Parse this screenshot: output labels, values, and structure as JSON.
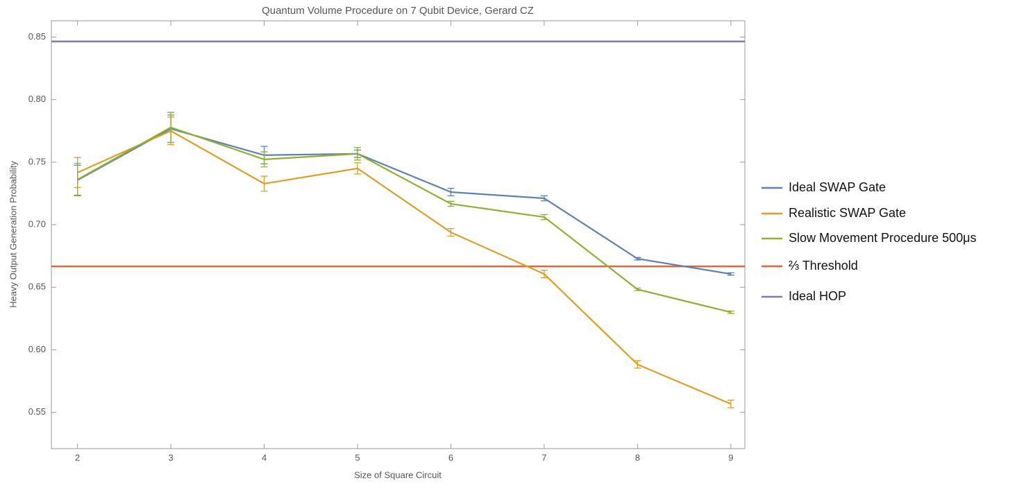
{
  "chart_data": {
    "type": "line",
    "title": "Quantum Volume Procedure on 7 Qubit Device, Gerard CZ",
    "x_label": "Size of Square Circuit",
    "y_label": "Heavy Output Generation Probability",
    "x": [
      2,
      3,
      4,
      5,
      6,
      7,
      8,
      9
    ],
    "series": [
      {
        "name": "Ideal SWAP Gate",
        "color": "#5e81b5",
        "values": [
          0.7356,
          0.7767,
          0.7556,
          0.7567,
          0.7261,
          0.7211,
          0.6728,
          0.6606
        ],
        "errors": [
          0.012,
          0.011,
          0.007,
          0.003,
          0.003,
          0.002,
          0.001,
          0.001
        ]
      },
      {
        "name": "Realistic SWAP Gate",
        "color": "#e19c24",
        "values": [
          0.7417,
          0.775,
          0.7328,
          0.745,
          0.6939,
          0.6606,
          0.5883,
          0.5567
        ],
        "errors": [
          0.012,
          0.011,
          0.006,
          0.0045,
          0.003,
          0.003,
          0.003,
          0.003
        ]
      },
      {
        "name": "Slow Movement Procedure 500μs",
        "color": "#8fb032",
        "values": [
          0.7361,
          0.7778,
          0.7522,
          0.7567,
          0.7167,
          0.7061,
          0.6483,
          0.63
        ],
        "errors": [
          0.013,
          0.012,
          0.006,
          0.005,
          0.002,
          0.002,
          0.001,
          0.001
        ]
      }
    ],
    "reference_lines": [
      {
        "name": "⅔ Threshold",
        "color": "#eb6235",
        "value": 0.6667
      },
      {
        "name": "Ideal HOP",
        "color": "#8778b3",
        "value": 0.8465
      }
    ],
    "xlim": [
      1.72,
      9.15
    ],
    "ylim": [
      0.521,
      0.863
    ],
    "xticks": [
      2,
      3,
      4,
      5,
      6,
      7,
      8,
      9
    ],
    "yticks": [
      0.55,
      {
        "value": 0.6,
        "label": "0.60"
      },
      0.65,
      {
        "value": 0.7,
        "label": "0.70"
      },
      0.75,
      {
        "value": 0.8,
        "label": "0.80"
      },
      0.85
    ],
    "legend": "right"
  }
}
